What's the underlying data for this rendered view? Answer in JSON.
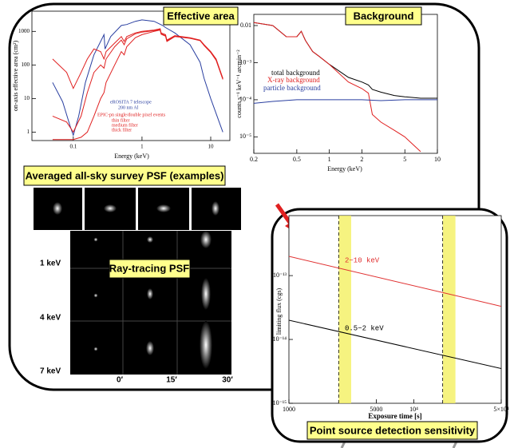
{
  "chart_data": [
    {
      "type": "line",
      "title": "Effective area",
      "xlabel": "Energy (keV)",
      "ylabel": "on-axis effective area (cm²)",
      "xscale": "log",
      "yscale": "log",
      "xlim": [
        0.025,
        19
      ],
      "ylim": [
        0.56,
        4000
      ],
      "xticks": [
        0.1,
        1,
        10
      ],
      "yticks": [
        1,
        10,
        100,
        1000
      ],
      "annotations": [
        "200 nm Al",
        "EPIC-pn single/double pixel events"
      ],
      "series": [
        {
          "name": "eROSITA 7 telescope",
          "color": "#2a3fa0",
          "x": [
            0.05,
            0.07,
            0.09,
            0.1,
            0.12,
            0.15,
            0.2,
            0.28,
            0.29,
            0.35,
            0.5,
            0.6,
            0.8,
            1,
            1.5,
            2,
            2.2,
            3,
            5,
            7,
            8,
            10,
            15
          ],
          "values": [
            30,
            8,
            1.5,
            0.8,
            3,
            30,
            200,
            800,
            300,
            700,
            1500,
            1600,
            2000,
            2200,
            2000,
            1500,
            1300,
            900,
            400,
            120,
            40,
            10,
            1
          ]
        },
        {
          "name": "thin filter",
          "color": "#e02020",
          "x": [
            0.05,
            0.08,
            0.1,
            0.13,
            0.16,
            0.2,
            0.25,
            0.28,
            0.3,
            0.4,
            0.5,
            0.55,
            0.6,
            0.8,
            1,
            1.5,
            1.84,
            1.9,
            2.2,
            2.3,
            3,
            5,
            7,
            8,
            10,
            12,
            15
          ],
          "values": [
            150,
            60,
            20,
            60,
            150,
            300,
            250,
            150,
            250,
            450,
            700,
            500,
            700,
            900,
            1000,
            1100,
            1200,
            900,
            800,
            550,
            750,
            650,
            550,
            400,
            250,
            150,
            40
          ]
        },
        {
          "name": "medium filter",
          "color": "#e02020",
          "x": [
            0.05,
            0.08,
            0.1,
            0.13,
            0.16,
            0.2,
            0.25,
            0.28,
            0.3,
            0.4,
            0.5,
            0.55,
            0.6,
            0.8,
            1,
            1.5,
            1.84,
            1.9,
            2.2,
            2.3,
            3,
            5,
            7,
            8,
            10,
            12,
            15
          ],
          "values": [
            3,
            2,
            1,
            3,
            15,
            60,
            100,
            80,
            150,
            350,
            550,
            400,
            600,
            850,
            950,
            1050,
            1150,
            850,
            750,
            520,
            720,
            630,
            540,
            390,
            240,
            140,
            38
          ]
        },
        {
          "name": "thick filter",
          "color": "#e02020",
          "x": [
            0.05,
            0.08,
            0.1,
            0.13,
            0.16,
            0.2,
            0.25,
            0.28,
            0.3,
            0.4,
            0.5,
            0.55,
            0.6,
            0.8,
            1,
            1.5,
            1.84,
            1.9,
            2.2,
            2.3,
            3,
            5,
            7,
            8,
            10,
            12,
            15
          ],
          "values": [
            0.6,
            0.6,
            0.6,
            0.7,
            1,
            3,
            10,
            15,
            30,
            100,
            250,
            200,
            350,
            650,
            800,
            1000,
            1100,
            820,
            720,
            500,
            700,
            620,
            530,
            380,
            235,
            138,
            37
          ]
        }
      ]
    },
    {
      "type": "line",
      "title": "Background",
      "xlabel": "Energy (keV)",
      "ylabel": "counts s⁻¹ keV⁻¹ arcmin⁻²",
      "xscale": "log",
      "yscale": "log",
      "xlim": [
        0.2,
        10
      ],
      "ylim": [
        3.6e-06,
        0.02
      ],
      "xticks": [
        0.2,
        0.5,
        1,
        2,
        5,
        10
      ],
      "yticks": [
        0.01,
        {
          "value": 0.001,
          "label": "10⁻³"
        },
        {
          "value": 0.0001,
          "label": "10⁻⁴"
        },
        {
          "value": 1e-05,
          "label": "10⁻⁵"
        }
      ],
      "series": [
        {
          "name": "total background",
          "color": "#000000",
          "x": [
            0.2,
            0.3,
            0.4,
            0.5,
            0.55,
            0.6,
            0.7,
            0.8,
            1,
            1.5,
            2,
            2.3,
            2.5,
            3,
            4,
            5,
            7,
            10
          ],
          "values": [
            0.012,
            0.01,
            0.005,
            0.005,
            0.007,
            0.004,
            0.002,
            0.0015,
            0.0009,
            0.0004,
            0.0003,
            0.00025,
            0.00019,
            0.00016,
            0.00013,
            0.00012,
            0.00011,
            0.00011
          ]
        },
        {
          "name": "X-ray background",
          "color": "#e02020",
          "x": [
            0.2,
            0.3,
            0.4,
            0.5,
            0.55,
            0.6,
            0.7,
            0.8,
            1,
            1.5,
            2,
            2.3,
            2.5,
            3,
            4,
            5,
            7,
            10
          ],
          "values": [
            0.012,
            0.01,
            0.005,
            0.005,
            0.007,
            0.004,
            0.002,
            0.0015,
            0.0009,
            0.0003,
            0.0002,
            0.00015,
            4e-05,
            2.5e-05,
            1.5e-05,
            1e-05,
            4e-06,
            null
          ]
        },
        {
          "name": "particle background",
          "color": "#2a3fa0",
          "x": [
            0.2,
            0.3,
            0.5,
            1,
            2,
            3,
            5,
            10
          ],
          "values": [
            8e-05,
            9e-05,
            0.0001,
            0.0001,
            0.0001,
            9.5e-05,
            0.0001,
            0.0001
          ]
        }
      ]
    },
    {
      "type": "line",
      "title": "Point source detection sensitivity",
      "xlabel": "Exposure time [s]",
      "ylabel": "limiting flux (cgs)",
      "xscale": "log",
      "yscale": "log",
      "xlim": [
        1000,
        50000
      ],
      "ylim": [
        1e-15,
        8.7e-13
      ],
      "xticks": [
        1000,
        5000,
        {
          "value": 10000,
          "label": "10⁴"
        },
        {
          "value": 50000,
          "label": "5×10⁴"
        }
      ],
      "yticks": [
        {
          "value": 1e-15,
          "label": "10⁻¹⁵"
        },
        {
          "value": 1e-14,
          "label": "10⁻¹⁴"
        },
        {
          "value": 1e-13,
          "label": "10⁻¹³"
        }
      ],
      "bands": [
        [
          2500,
          3150
        ],
        [
          17000,
          21500
        ]
      ],
      "band_color": "#f4f060",
      "series": [
        {
          "name": "2−10 keV",
          "color": "#e03030",
          "x": [
            1000,
            50000
          ],
          "values": [
            2e-13,
            3.3e-14
          ]
        },
        {
          "name": "0.5−2 keV",
          "color": "#000000",
          "x": [
            1000,
            50000
          ],
          "values": [
            2e-14,
            3.5e-15
          ]
        }
      ]
    }
  ],
  "psf": {
    "survey_title": "Averaged all-sky survey PSF (examples)",
    "raytrace_title": "Ray-tracing PSF",
    "energies": [
      "1 keV",
      "4 keV",
      "7 keV"
    ],
    "offaxis": [
      "0′",
      "15′",
      "30′"
    ]
  }
}
